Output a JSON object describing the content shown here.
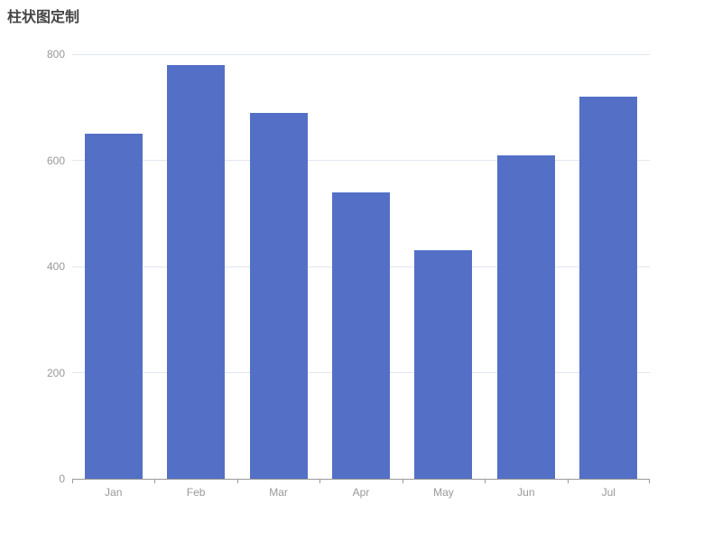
{
  "page": {
    "title": "柱状图定制"
  },
  "chart_data": {
    "type": "bar",
    "title": "柱状图定制",
    "categories": [
      "Jan",
      "Feb",
      "Mar",
      "Apr",
      "May",
      "Jun",
      "Jul"
    ],
    "values": [
      650,
      780,
      690,
      540,
      430,
      610,
      720
    ],
    "xlabel": "",
    "ylabel": "",
    "ylim": [
      0,
      800
    ],
    "yticks": [
      0,
      200,
      400,
      600,
      800
    ],
    "grid": true,
    "legend": false,
    "bar_width_ratio": 0.7,
    "colors": {
      "bar": "#5470C6",
      "grid_line": "#E0E6F1",
      "axis_line": "#999999",
      "axis_label": "#999999",
      "title": "#464646",
      "background": "#FFFFFF"
    }
  }
}
